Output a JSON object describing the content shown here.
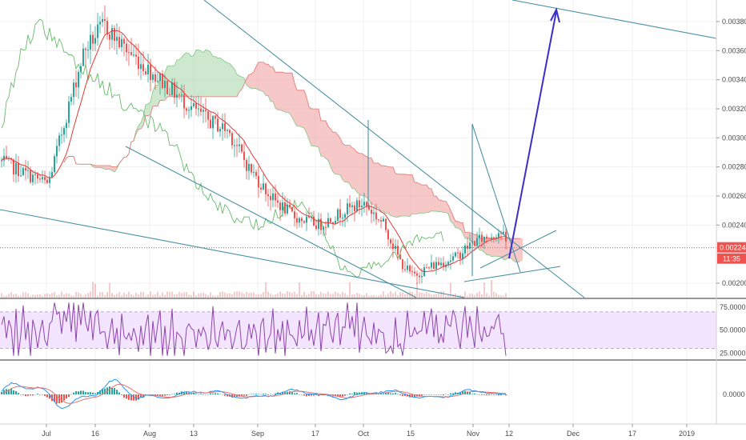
{
  "chart_data": {
    "type": "candlestick",
    "title": "",
    "x_axis": {
      "labels": [
        "Jul",
        "16",
        "Aug",
        "13",
        "Sep",
        "17",
        "Oct",
        "15",
        "Nov",
        "12",
        "Dec",
        "17",
        "2019"
      ]
    },
    "price_axis": {
      "ticks": [
        "0.003800",
        "0.003600",
        "0.003400",
        "0.003200",
        "0.003000",
        "0.002800",
        "0.002600",
        "0.002400",
        "0.002000"
      ],
      "range": [
        0.00191,
        0.00385
      ]
    },
    "last_price": {
      "value": "0.002244",
      "countdown": "11:35",
      "color": "#ef5350"
    },
    "indicators": {
      "ichimoku_cloud": {
        "bull_fill": "#a5d6a7",
        "bear_fill": "#ef9a9a"
      },
      "moving_average": {
        "color": "#e53935"
      },
      "lagging_span": {
        "color": "#66bb6a"
      },
      "volume": {
        "color": "#ef9a9a"
      }
    },
    "rsi": {
      "ticks": [
        "75.0000",
        "50.0000",
        "25.0000"
      ],
      "range": [
        20,
        82
      ],
      "band": [
        30,
        70
      ],
      "line_color": "#8e44ad",
      "band_fill": "#f3e5ff"
    },
    "macd": {
      "ticks": [
        "0.0000"
      ],
      "macd_color": "#2196f3",
      "signal_color": "#e57373",
      "hist_pos_color": "#26a69a",
      "hist_neg_color": "#ef5350"
    },
    "drawings": {
      "trendline_color": "#4a90a4",
      "projection_arrow_color": "#3b2fc9"
    }
  }
}
